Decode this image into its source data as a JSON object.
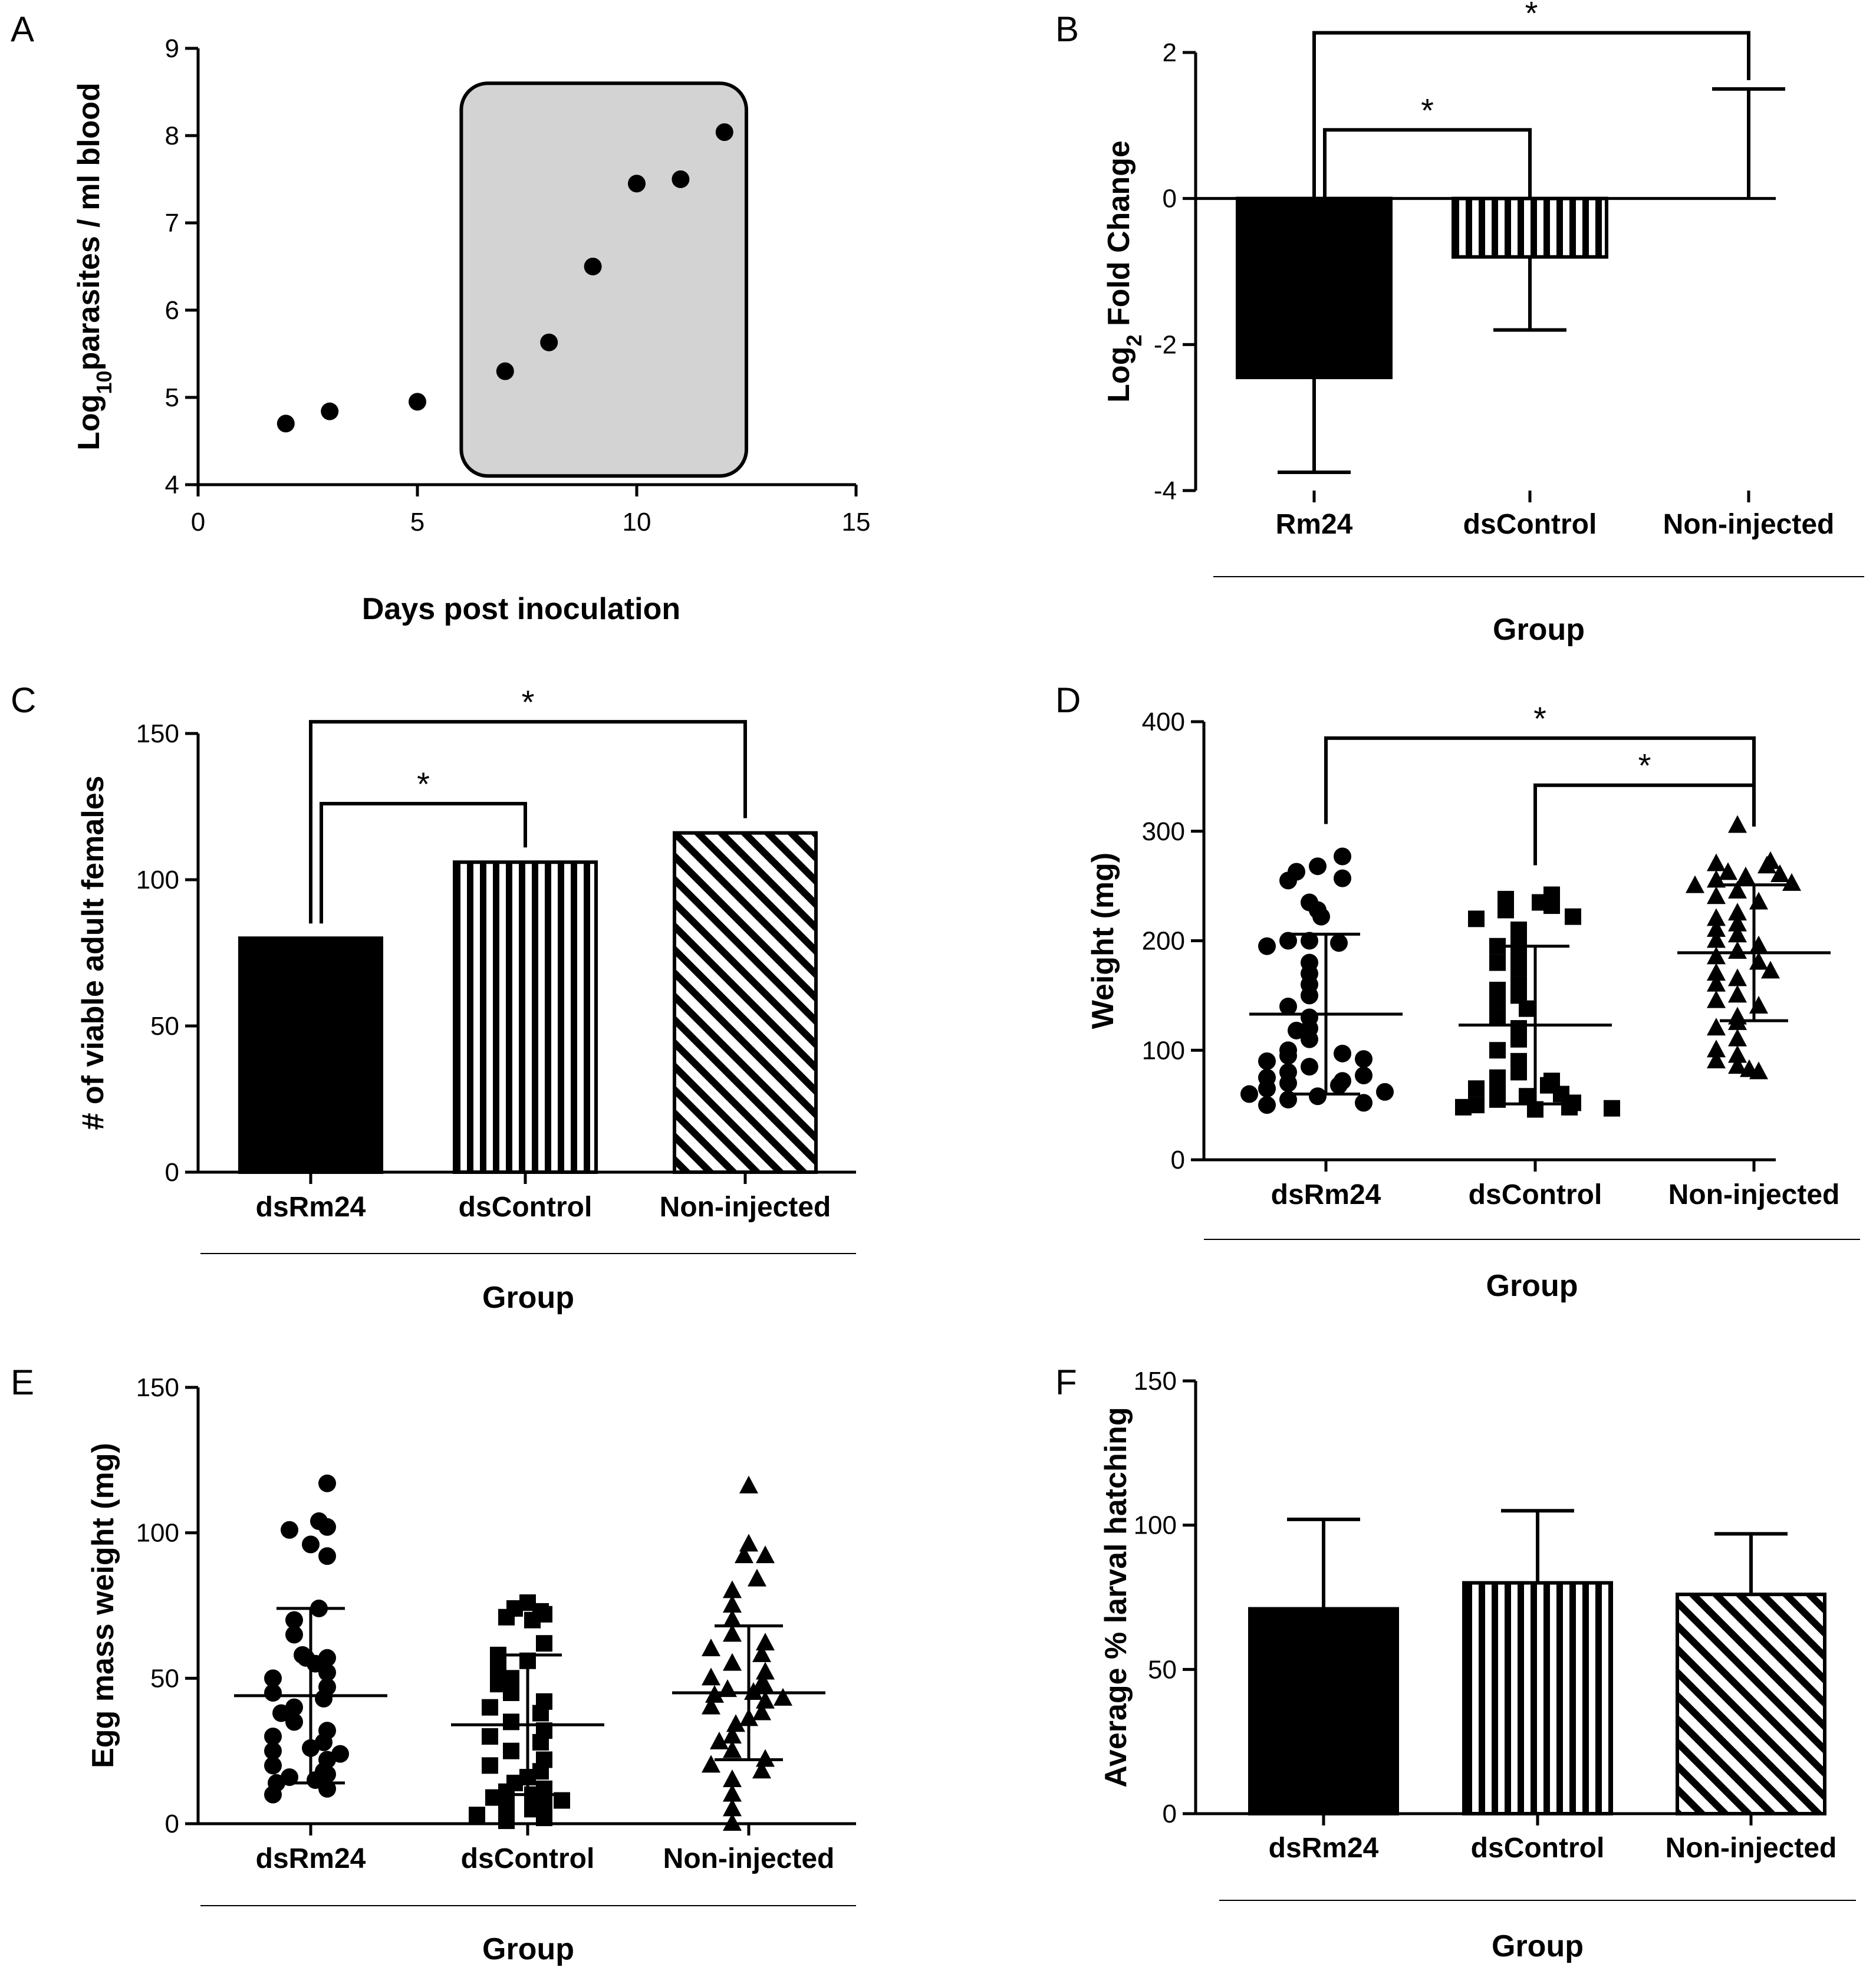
{
  "chart_data": [
    {
      "panel": "A",
      "type": "scatter",
      "xlabel": "Days post inoculation",
      "ylabel": {
        "base": "Log",
        "sub": "10",
        "rest": "parasites / ml blood"
      },
      "xlim": [
        0,
        15
      ],
      "ylim": [
        4,
        9
      ],
      "xticks": [
        0,
        5,
        10,
        15
      ],
      "yticks": [
        4,
        5,
        6,
        7,
        8,
        9
      ],
      "x": [
        2,
        3,
        5,
        7,
        8,
        9,
        10,
        11,
        12
      ],
      "y": [
        4.7,
        4.84,
        4.95,
        5.3,
        5.63,
        6.5,
        7.45,
        7.5,
        8.04
      ],
      "highlight_range": {
        "x": [
          6,
          12.5
        ],
        "y": [
          4.1,
          8.6
        ]
      }
    },
    {
      "panel": "B",
      "type": "bar",
      "xlabel": "Group",
      "ylabel": {
        "base": "Log",
        "sub": "2",
        "rest": " Fold Change"
      },
      "ylim": [
        -4,
        2
      ],
      "yticks": [
        -4,
        -2,
        0,
        2
      ],
      "categories": [
        "Rm24",
        "dsControl",
        "Non-injected"
      ],
      "values": [
        -2.45,
        -0.8,
        0
      ],
      "errors": [
        1.3,
        1.0,
        1.5
      ],
      "patterns": [
        "solid",
        "vertical",
        "none"
      ],
      "significance": [
        {
          "from": 0,
          "to": 2,
          "level": 2.27,
          "label": "*"
        },
        {
          "from": 0,
          "to": 1,
          "level": 0.94,
          "label": "*"
        }
      ]
    },
    {
      "panel": "C",
      "type": "bar",
      "xlabel": "Group",
      "ylabel": "# of viable adult females",
      "ylim": [
        0,
        150
      ],
      "yticks": [
        0,
        50,
        100,
        150
      ],
      "categories": [
        "dsRm24",
        "dsControl",
        "Non-injected"
      ],
      "values": [
        80,
        106,
        116
      ],
      "patterns": [
        "solid",
        "vertical",
        "diagonal"
      ],
      "significance": [
        {
          "from": 0,
          "to": 2,
          "level": 154,
          "label": "*"
        },
        {
          "from": 0,
          "to": 1,
          "level": 126,
          "label": "*"
        }
      ]
    },
    {
      "panel": "D",
      "type": "scatter",
      "xlabel": "Group",
      "ylabel": "Weight (mg)",
      "ylim": [
        0,
        400
      ],
      "yticks": [
        0,
        100,
        200,
        300,
        400
      ],
      "categories": [
        "dsRm24",
        "dsControl",
        "Non-injected"
      ],
      "markers": [
        "circle",
        "square",
        "triangle"
      ],
      "series": [
        {
          "name": "dsRm24",
          "mean": 133,
          "sd": 73,
          "values": [
            277,
            268,
            263,
            257,
            255,
            235,
            228,
            222,
            200,
            200,
            198,
            195,
            180,
            170,
            160,
            150,
            140,
            130,
            120,
            118,
            110,
            100,
            97,
            95,
            92,
            90,
            85,
            80,
            77,
            75,
            72,
            70,
            68,
            65,
            62,
            60,
            58,
            55,
            52,
            50
          ]
        },
        {
          "name": "dsControl",
          "mean": 123,
          "sd": 72,
          "values": [
            242,
            238,
            235,
            232,
            228,
            222,
            220,
            210,
            200,
            195,
            190,
            180,
            175,
            160,
            155,
            150,
            145,
            138,
            130,
            120,
            110,
            100,
            90,
            80,
            75,
            72,
            70,
            68,
            65,
            60,
            58,
            55,
            52,
            50,
            48,
            48,
            47,
            46
          ]
        },
        {
          "name": "Non-injected",
          "mean": 189,
          "sd": 62,
          "values": [
            305,
            272,
            270,
            268,
            262,
            260,
            258,
            255,
            252,
            250,
            245,
            240,
            235,
            225,
            220,
            215,
            210,
            205,
            200,
            195,
            190,
            185,
            180,
            172,
            170,
            165,
            160,
            150,
            145,
            140,
            130,
            125,
            120,
            110,
            100,
            95,
            90,
            85,
            82,
            80
          ]
        }
      ],
      "significance": [
        {
          "from": 0,
          "to": 2,
          "level": 385,
          "label": "*"
        },
        {
          "from": 1,
          "to": 2,
          "level": 342,
          "label": "*"
        }
      ]
    },
    {
      "panel": "E",
      "type": "scatter",
      "xlabel": "Group",
      "ylabel": "Egg mass weight (mg)",
      "ylim": [
        0,
        150
      ],
      "yticks": [
        0,
        50,
        100,
        150
      ],
      "categories": [
        "dsRm24",
        "dsControl",
        "Non-injected"
      ],
      "markers": [
        "circle",
        "square",
        "triangle"
      ],
      "series": [
        {
          "name": "dsRm24",
          "mean": 44,
          "sd": 30,
          "values": [
            117,
            104,
            102,
            101,
            96,
            92,
            74,
            70,
            65,
            58,
            57,
            57,
            55,
            52,
            50,
            47,
            45,
            43,
            40,
            38,
            35,
            32,
            30,
            28,
            26,
            25,
            24,
            22,
            20,
            18,
            17,
            16,
            15,
            14,
            12,
            10
          ]
        },
        {
          "name": "dsControl",
          "mean": 34,
          "sd": 24,
          "values": [
            76,
            74,
            73,
            72,
            71,
            70,
            62,
            58,
            56,
            53,
            50,
            48,
            45,
            42,
            40,
            38,
            35,
            32,
            30,
            28,
            25,
            22,
            20,
            18,
            16,
            14,
            12,
            11,
            10,
            9,
            8,
            7,
            6,
            5,
            3,
            2,
            1
          ]
        },
        {
          "name": "Non-injected",
          "mean": 45,
          "sd": 23,
          "values": [
            116,
            96,
            92,
            92,
            84,
            80,
            75,
            70,
            65,
            62,
            60,
            58,
            55,
            52,
            50,
            48,
            47,
            46,
            45,
            44,
            43,
            42,
            40,
            38,
            36,
            34,
            30,
            28,
            25,
            22,
            20,
            18,
            15,
            10,
            5,
            0
          ]
        }
      ]
    },
    {
      "panel": "F",
      "type": "bar",
      "xlabel": "Group",
      "ylabel": "Average % larval hatching",
      "ylim": [
        0,
        150
      ],
      "yticks": [
        0,
        50,
        100,
        150
      ],
      "categories": [
        "dsRm24",
        "dsControl",
        "Non-injected"
      ],
      "values": [
        71,
        80,
        76
      ],
      "errors": [
        31,
        25,
        21
      ],
      "patterns": [
        "solid",
        "vertical",
        "diagonal"
      ]
    }
  ]
}
